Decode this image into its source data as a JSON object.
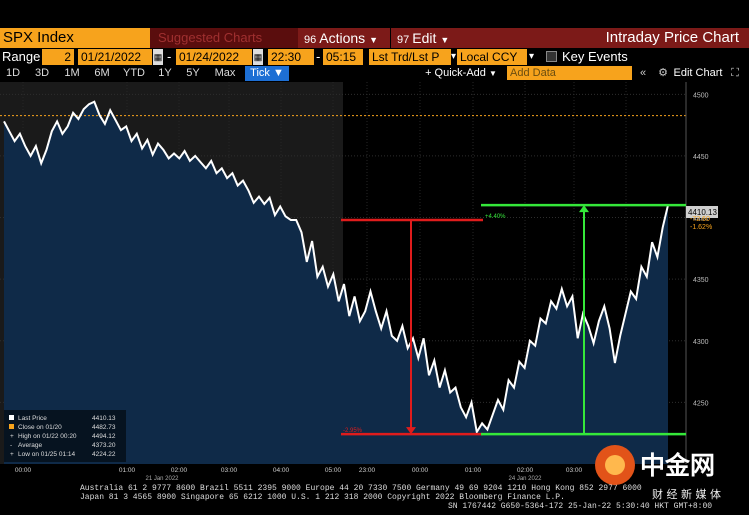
{
  "header": {
    "ticker": "SPX Index",
    "suggested": "Suggested Charts",
    "actions_num": "96",
    "actions": "Actions",
    "edit_num": "97",
    "edit": "Edit",
    "chart_title": "Intraday Price Chart"
  },
  "controls": {
    "range_label": "Range",
    "range_value": "2",
    "start_date": "01/21/2022",
    "end_date": "01/24/2022",
    "start_time": "22:30",
    "end_time": "05:15",
    "mode": "Lst Trd/Lst P",
    "currency": "Local CCY",
    "key_events": "Key Events"
  },
  "toolbar": {
    "periods": [
      "1D",
      "3D",
      "1M",
      "6M",
      "YTD",
      "1Y",
      "5Y",
      "Max"
    ],
    "tick": "Tick",
    "quick_add": "+ Quick-Add",
    "add_data_placeholder": "Add Data",
    "edit_chart": "Edit Chart"
  },
  "legend": {
    "rows": [
      {
        "label": "Last Price",
        "value": "4410.13"
      },
      {
        "label": "Close on 01/20",
        "value": "4482.73"
      },
      {
        "label": "High on 01/22 00:20",
        "value": "4494.12"
      },
      {
        "label": "Average",
        "value": "4373.20"
      },
      {
        "label": "Low on 01/25 01:14",
        "value": "4224.22"
      }
    ]
  },
  "annotations": {
    "top_right_label": "+4.40%",
    "bottom_left_label": "-2.95%",
    "last_price_tag": "4410.13",
    "change_abs": "-72.60",
    "change_pct": "-1.62%"
  },
  "footer": {
    "line1": "Australia 61 2 9777 8600 Brazil 5511 2395 9000 Europe 44 20 7330 7500 Germany 49 69 9204 1210 Hong Kong 852 2977 6000",
    "line2": "Japan 81 3 4565 8900        Singapore 65 6212 1000        U.S. 1 212 318 2000        Copyright 2022 Bloomberg Finance L.P.",
    "line3": "SN 1767442 G650-5364-172 25-Jan-22  5:30:40 HKT  GMT+8:00"
  },
  "watermark": {
    "brand": "中金网",
    "sub": "财 经 新 媒 体"
  },
  "colors": {
    "accent_orange": "#f7a31c",
    "toolbar_red": "#7c1a18",
    "area_fill": "#0f2a48",
    "annotation_red": "#e01c1c",
    "annotation_green": "#35e83a"
  },
  "chart_data": {
    "type": "area",
    "title": "",
    "ylim": [
      4200,
      4510
    ],
    "yticks": [
      4250,
      4300,
      4350,
      4400,
      4450,
      4500
    ],
    "x_date_labels": [
      "21 Jan 2022",
      "24 Jan 2022"
    ],
    "x_time_labels": [
      "00:00",
      "01:00",
      "02:00",
      "03:00",
      "04:00",
      "05:00",
      "23:00",
      "00:00",
      "01:00",
      "02:00",
      "03:00",
      "04:00"
    ],
    "reference_line": 4482.73,
    "series": [
      {
        "values": [
          4478,
          4470,
          4462,
          4468,
          4458,
          4450,
          4458,
          4444,
          4455,
          4470,
          4478,
          4468,
          4474,
          4485,
          4480,
          4488,
          4492,
          4494,
          4483,
          4476,
          4487,
          4479,
          4471,
          4474,
          4462,
          4468,
          4456,
          4463,
          4451,
          4460,
          4455,
          4448,
          4452,
          4448,
          4454,
          4446,
          4450,
          4445,
          4440,
          4446,
          4436,
          4440,
          4432,
          4436,
          4426,
          4430,
          4422,
          4412,
          4417,
          4411,
          4416,
          4402,
          4409,
          4401,
          4398,
          4398,
          4388,
          4364,
          4381,
          4352,
          4360,
          4344,
          4354,
          4332,
          4346,
          4320,
          4336,
          4316,
          4324,
          4340,
          4324,
          4310,
          4324,
          4304,
          4300,
          4312,
          4294,
          4302,
          4286,
          4302,
          4272,
          4284,
          4262,
          4276,
          4258,
          4262,
          4246,
          4238,
          4250,
          4226,
          4233,
          4228,
          4240,
          4252,
          4244,
          4268,
          4262,
          4283,
          4278,
          4300,
          4296,
          4318,
          4314,
          4332,
          4326,
          4342,
          4328,
          4336,
          4302,
          4322,
          4312,
          4298,
          4316,
          4328,
          4310,
          4282,
          4304,
          4322,
          4340,
          4334,
          4360,
          4352,
          4380,
          4368,
          4392,
          4410
        ],
        "start_label": "22:30",
        "end_label": "05:15"
      }
    ],
    "annotations": {
      "red_top_level": 4398,
      "red_bottom_level": 4224.22,
      "green_bottom_level": 4224.22,
      "green_top_level": 4410.13
    },
    "legend_placement": "bottom-left"
  }
}
